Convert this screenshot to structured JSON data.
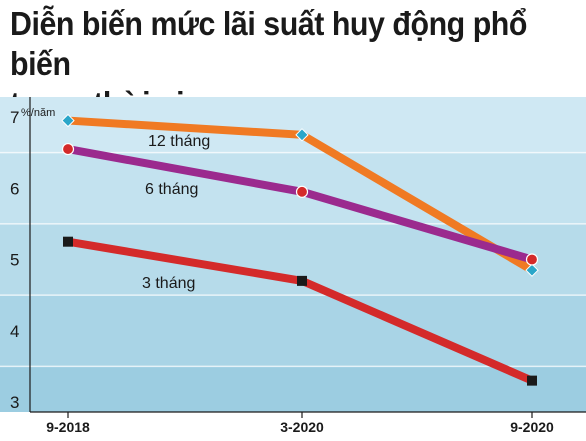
{
  "title_line1": "Diễn biến mức lãi suất huy động phổ biến",
  "title_line2": "trong thời gian qua",
  "chart_data": {
    "type": "line",
    "x": [
      "9-2018",
      "3-2020",
      "9-2020"
    ],
    "y_unit": "%/năm",
    "y_ticks": [
      "3",
      "4",
      "5",
      "6",
      "7"
    ],
    "ylim": [
      3,
      7
    ],
    "grid": true,
    "series": [
      {
        "name": "12 tháng",
        "values": [
          6.95,
          6.75,
          4.85
        ],
        "color": "#f07a23",
        "marker": "diamond",
        "marker_color": "#2aa6c9"
      },
      {
        "name": "6 tháng",
        "values": [
          6.55,
          5.95,
          5.0
        ],
        "color": "#9b2a8e",
        "marker": "circle",
        "marker_color": "#d42a2a"
      },
      {
        "name": "3 tháng",
        "values": [
          5.25,
          4.7,
          3.3
        ],
        "color": "#d42a2a",
        "marker": "square",
        "marker_color": "#1a1a1a"
      }
    ]
  }
}
